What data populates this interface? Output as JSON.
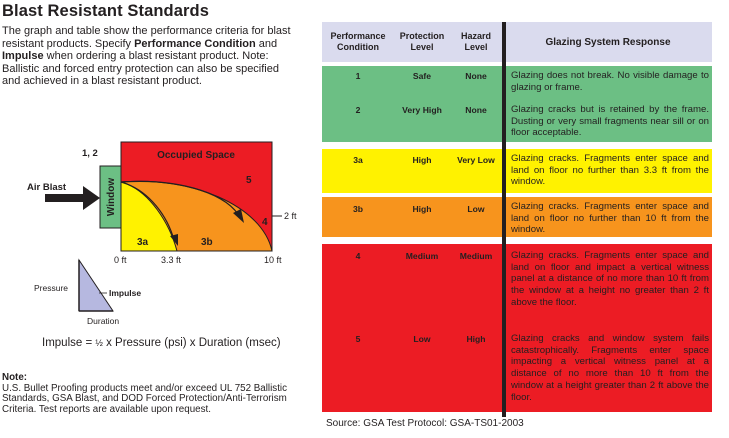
{
  "title": "Blast Resistant Standards",
  "intro": {
    "p1": "The graph and table show the performance criteria for blast resistant products.  Specify ",
    "b1": "Performance Condition",
    "p2": " and ",
    "b2": "Impulse",
    "p3": " when ordering a blast resistant product.  Note:  Ballistic and forced entry protection can also be specified and achieved in a blast resistant product."
  },
  "diagram": {
    "label_12": "1, 2",
    "occupied_space": "Occupied Space",
    "air_blast": "Air Blast",
    "window": "Window",
    "zone_5": "5",
    "zone_4": "4",
    "zone_3a": "3a",
    "zone_3b": "3b",
    "two_ft": "2 ft",
    "tick_0": "0 ft",
    "tick_33": "3.3 ft",
    "tick_10": "10 ft",
    "pressure": "Pressure",
    "impulse": "Impulse",
    "duration": "Duration",
    "colors": {
      "red": "#ec1c24",
      "orange": "#f7941d",
      "yellow": "#fff200",
      "green": "#6cbf84"
    }
  },
  "formula": {
    "prefix": "Impulse = ",
    "frac": "½",
    "rest": " x Pressure (psi) x Duration (msec)"
  },
  "note": {
    "label": "Note:",
    "text": "U.S. Bullet Proofing products meet and/or exceed UL 752 Ballistic Standards, GSA Blast, and DOD Forced Protection/Anti-Terrorism Criteria.  Test reports are available upon request."
  },
  "table": {
    "headers": {
      "condition_l1": "Performance",
      "condition_l2": "Condition",
      "protection_l1": "Protection",
      "protection_l2": "Level",
      "hazard_l1": "Hazard",
      "hazard_l2": "Level",
      "response": "Glazing System Response"
    },
    "rows": [
      {
        "condition": "1",
        "protection": "Safe",
        "hazard": "None",
        "response": "Glazing does not break.  No visible damage to glazing or frame.",
        "color": "#6cbf84"
      },
      {
        "condition": "2",
        "protection": "Very High",
        "hazard": "None",
        "response": "Glazing cracks but is retained by the frame.  Dusting or very small fragments near sill or on floor acceptable.",
        "color": "#6cbf84"
      },
      {
        "condition": "3a",
        "protection": "High",
        "hazard": "Very Low",
        "response": "Glazing cracks.  Fragments enter space and land on floor no further than 3.3 ft from the window.",
        "color": "#fff200"
      },
      {
        "condition": "3b",
        "protection": "High",
        "hazard": "Low",
        "response": "Glazing cracks.  Fragments enter space and land on floor no further than 10 ft from the window.",
        "color": "#f7941d"
      },
      {
        "condition": "4",
        "protection": "Medium",
        "hazard": "Medium",
        "response": "Glazing cracks.  Fragments enter space and land on floor and impact a vertical witness panel at a distance of no more than 10 ft from the window at a height no greater than 2 ft above the floor.",
        "color": "#ec1c24"
      },
      {
        "condition": "5",
        "protection": "Low",
        "hazard": "High",
        "response": "Glazing cracks and window system fails catastrophically.  Fragments enter space impacting a vertical witness panel at a distance of no more than 10 ft from the window at a height greater than 2 ft above the floor.",
        "color": "#ec1c24"
      }
    ]
  },
  "source": "Source: GSA Test Protocol: GSA-TS01-2003"
}
